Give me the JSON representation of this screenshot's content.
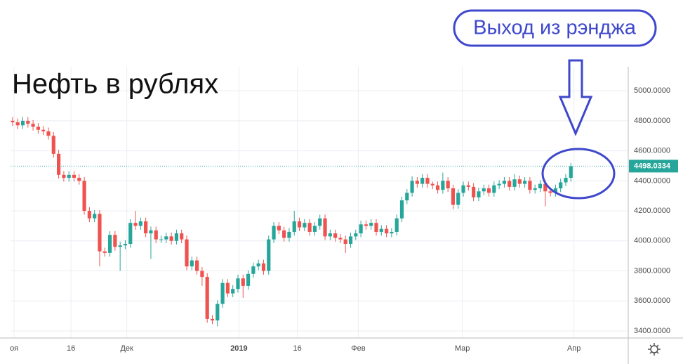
{
  "chart_data": {
    "type": "candlestick",
    "title": "Нефть в рублях",
    "annotation": "Выход из рэнджа",
    "up_color": "#26a69a",
    "down_color": "#ef5350",
    "grid": true,
    "last_price": 4498.0334,
    "xlim": [
      -0.4,
      120.2
    ],
    "xticks": [
      {
        "value": 0.3,
        "label": "оя"
      },
      {
        "value": 11.4,
        "label": "16"
      },
      {
        "value": 22.3,
        "label": "Дек"
      },
      {
        "value": 44.2,
        "label": "2019"
      },
      {
        "value": 55.6,
        "label": "16"
      },
      {
        "value": 67.5,
        "label": "Фев"
      },
      {
        "value": 87.8,
        "label": "Мар"
      },
      {
        "value": 109.6,
        "label": "Апр"
      }
    ],
    "ylim": [
      3353,
      5160
    ],
    "yticks": [
      {
        "value": 3400,
        "label": "3400.0000"
      },
      {
        "value": 3600,
        "label": "3600.0000"
      },
      {
        "value": 3800,
        "label": "3800.0000"
      },
      {
        "value": 4000,
        "label": "4000.0000"
      },
      {
        "value": 4200,
        "label": "4200.0000"
      },
      {
        "value": 4400,
        "label": "4400.0000"
      },
      {
        "value": 4600,
        "label": "4600.0000"
      },
      {
        "value": 4800,
        "label": "4800.0000"
      },
      {
        "value": 5000,
        "label": "5000.0000"
      }
    ],
    "open": [
      4800,
      4790,
      4770,
      4800,
      4780,
      4760,
      4740,
      4730,
      4700,
      4580,
      4440,
      4420,
      4440,
      4420,
      4400,
      4200,
      4150,
      4180,
      3930,
      3920,
      4040,
      3960,
      3970,
      3980,
      4120,
      4100,
      4130,
      4050,
      4070,
      4010,
      4010,
      4030,
      4000,
      4050,
      4010,
      3830,
      3870,
      3800,
      3760,
      3480,
      3470,
      3580,
      3720,
      3650,
      3680,
      3750,
      3700,
      3780,
      3830,
      3850,
      3800,
      4010,
      4100,
      4070,
      4020,
      4060,
      4130,
      4090,
      4120,
      4060,
      4100,
      4150,
      4030,
      4050,
      4020,
      4010,
      3980,
      4030,
      4050,
      4110,
      4100,
      4120,
      4060,
      4080,
      4050,
      4060,
      4150,
      4270,
      4320,
      4400,
      4380,
      4420,
      4380,
      4370,
      4340,
      4400,
      4350,
      4240,
      4320,
      4370,
      4360,
      4290,
      4330,
      4350,
      4320,
      4370,
      4380,
      4400,
      4360,
      4410,
      4380,
      4400,
      4340,
      4350,
      4380,
      4330,
      4320,
      4350,
      4390,
      4420
    ],
    "high": [
      4825,
      4815,
      4825,
      4825,
      4805,
      4785,
      4765,
      4755,
      4725,
      4605,
      4465,
      4465,
      4465,
      4445,
      4425,
      4225,
      4205,
      4205,
      3955,
      4065,
      4065,
      3995,
      4005,
      4145,
      4200,
      4155,
      4155,
      4095,
      4095,
      4035,
      4055,
      4055,
      4075,
      4075,
      4035,
      3895,
      3895,
      3825,
      3785,
      3505,
      3605,
      3745,
      3745,
      3705,
      3775,
      3775,
      3805,
      3855,
      3875,
      3875,
      4035,
      4125,
      4125,
      4095,
      4085,
      4200,
      4155,
      4145,
      4145,
      4125,
      4175,
      4175,
      4075,
      4075,
      4045,
      4035,
      4055,
      4075,
      4135,
      4135,
      4145,
      4145,
      4105,
      4105,
      4085,
      4175,
      4295,
      4345,
      4430,
      4425,
      4445,
      4445,
      4395,
      4395,
      4455,
      4425,
      4375,
      4345,
      4395,
      4395,
      4385,
      4355,
      4375,
      4375,
      4395,
      4405,
      4425,
      4425,
      4445,
      4435,
      4425,
      4425,
      4375,
      4405,
      4405,
      4355,
      4375,
      4415,
      4445,
      4520
    ],
    "low": [
      4765,
      4745,
      4745,
      4755,
      4735,
      4715,
      4705,
      4675,
      4555,
      4415,
      4395,
      4395,
      4395,
      4375,
      4175,
      4125,
      4125,
      3830,
      3895,
      3895,
      3935,
      3800,
      3945,
      3955,
      4075,
      4075,
      4025,
      3880,
      3985,
      3985,
      3985,
      3975,
      3975,
      3985,
      3805,
      3805,
      3775,
      3700,
      3455,
      3445,
      3430,
      3555,
      3625,
      3625,
      3655,
      3620,
      3675,
      3755,
      3805,
      3775,
      3775,
      3985,
      4045,
      3995,
      3995,
      4035,
      4065,
      4065,
      4035,
      4035,
      4075,
      4005,
      4005,
      3995,
      3985,
      3920,
      3955,
      4005,
      4025,
      4075,
      4075,
      4035,
      4035,
      4025,
      4025,
      4035,
      4125,
      4245,
      4295,
      4355,
      4355,
      4355,
      4345,
      4315,
      4315,
      4325,
      4210,
      4215,
      4295,
      4335,
      4265,
      4265,
      4305,
      4295,
      4295,
      4345,
      4355,
      4335,
      4335,
      4355,
      4355,
      4315,
      4315,
      4325,
      4230,
      4295,
      4295,
      4325,
      4365,
      4395
    ],
    "close": [
      4790,
      4770,
      4800,
      4780,
      4760,
      4740,
      4730,
      4700,
      4580,
      4440,
      4420,
      4440,
      4420,
      4400,
      4200,
      4150,
      4180,
      3930,
      3920,
      4040,
      3960,
      3970,
      3980,
      4120,
      4100,
      4130,
      4050,
      4070,
      4010,
      4010,
      4030,
      4000,
      4050,
      4010,
      3830,
      3870,
      3800,
      3760,
      3480,
      3470,
      3580,
      3720,
      3650,
      3680,
      3750,
      3700,
      3780,
      3830,
      3850,
      3800,
      4010,
      4100,
      4070,
      4020,
      4060,
      4130,
      4090,
      4120,
      4060,
      4100,
      4150,
      4030,
      4050,
      4020,
      4010,
      3980,
      4030,
      4050,
      4110,
      4100,
      4120,
      4060,
      4080,
      4050,
      4060,
      4150,
      4270,
      4320,
      4400,
      4380,
      4420,
      4380,
      4370,
      4340,
      4400,
      4350,
      4240,
      4320,
      4370,
      4360,
      4290,
      4330,
      4350,
      4320,
      4370,
      4380,
      4400,
      4360,
      4410,
      4380,
      4400,
      4340,
      4350,
      4380,
      4330,
      4320,
      4350,
      4390,
      4420,
      4498
    ]
  }
}
